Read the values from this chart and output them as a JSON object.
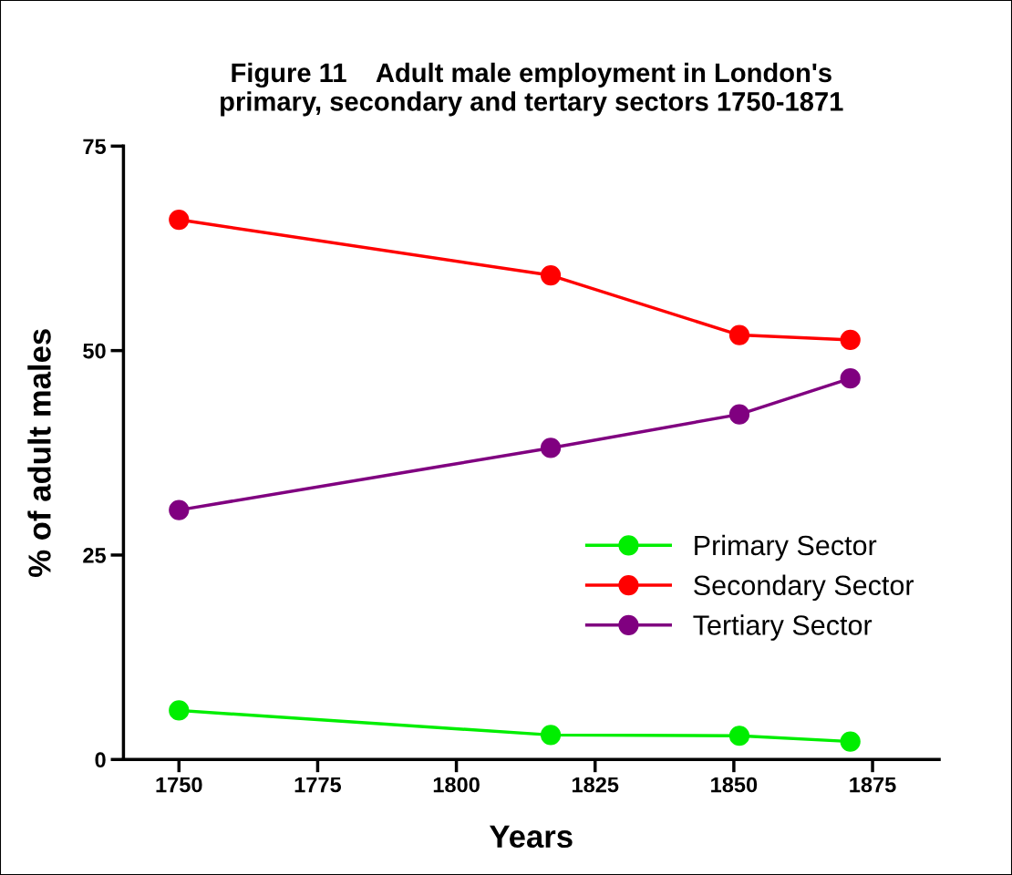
{
  "chart_data": {
    "type": "line",
    "title": "Figure 11    Adult male employment in London's\nprimary, secondary and tertary sectors 1750-1871",
    "xlabel": "Years",
    "ylabel": "% of adult males",
    "x": [
      1750,
      1817,
      1851,
      1871
    ],
    "series": [
      {
        "name": "Primary Sector",
        "color": "#00ee00",
        "values": [
          6.0,
          3.0,
          2.9,
          2.2
        ]
      },
      {
        "name": "Secondary Sector",
        "color": "#ff0000",
        "values": [
          66.0,
          59.2,
          51.9,
          51.3
        ]
      },
      {
        "name": "Tertiary Sector",
        "color": "#800080",
        "values": [
          30.5,
          38.1,
          42.2,
          46.6
        ]
      }
    ],
    "xlim": [
      1740,
      1887
    ],
    "xticks": [
      1750,
      1775,
      1800,
      1825,
      1850,
      1875
    ],
    "ylim": [
      0,
      75
    ],
    "yticks": [
      0,
      25,
      50,
      75
    ],
    "grid": false,
    "legend": "right",
    "marker": "circle",
    "line_style": "solid"
  }
}
